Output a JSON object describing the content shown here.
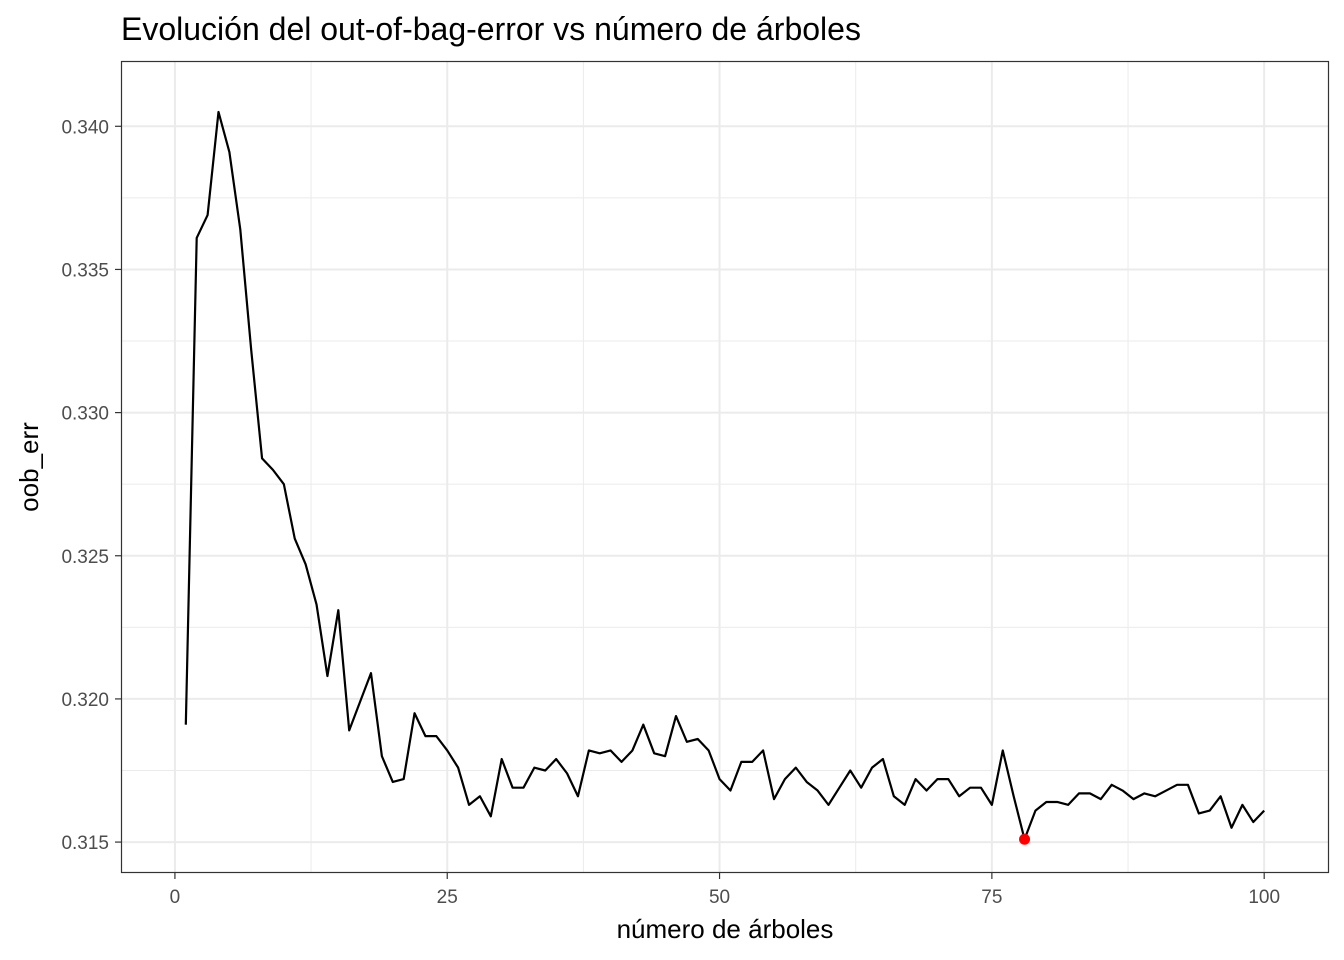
{
  "chart_data": {
    "type": "line",
    "title": "Evolución del out-of-bag-error vs número de árboles",
    "xlabel": "número de árboles",
    "ylabel": "oob_err",
    "xlim": [
      -4.95,
      105.95
    ],
    "ylim": [
      0.31392,
      0.34228
    ],
    "x_ticks": [
      0,
      25,
      50,
      75,
      100
    ],
    "x_tick_labels": [
      "0",
      "25",
      "50",
      "75",
      "100"
    ],
    "y_ticks": [
      0.315,
      0.32,
      0.325,
      0.33,
      0.335,
      0.34
    ],
    "y_tick_labels": [
      "0.315",
      "0.320",
      "0.325",
      "0.330",
      "0.335",
      "0.340"
    ],
    "grid": true,
    "series": [
      {
        "color": "#000000",
        "x": [
          1,
          2,
          3,
          4,
          5,
          6,
          7,
          8,
          9,
          10,
          11,
          12,
          13,
          14,
          15,
          16,
          17,
          18,
          19,
          20,
          21,
          22,
          23,
          24,
          25,
          26,
          27,
          28,
          29,
          30,
          31,
          32,
          33,
          34,
          35,
          36,
          37,
          38,
          39,
          40,
          41,
          42,
          43,
          44,
          45,
          46,
          47,
          48,
          49,
          50,
          51,
          52,
          53,
          54,
          55,
          56,
          57,
          58,
          59,
          60,
          61,
          62,
          63,
          64,
          65,
          66,
          67,
          68,
          69,
          70,
          71,
          72,
          73,
          74,
          75,
          76,
          77,
          78,
          79,
          80,
          81,
          82,
          83,
          84,
          85,
          86,
          87,
          88,
          89,
          90,
          91,
          92,
          93,
          94,
          95,
          96,
          97,
          98,
          99,
          100
        ],
        "y": [
          0.3191,
          0.3361,
          0.3369,
          0.3405,
          0.3391,
          0.3364,
          0.3322,
          0.3284,
          0.328,
          0.3275,
          0.3256,
          0.3247,
          0.3233,
          0.3208,
          0.3231,
          0.3189,
          0.3199,
          0.3209,
          0.318,
          0.3171,
          0.3172,
          0.3195,
          0.3187,
          0.3187,
          0.3182,
          0.3176,
          0.3163,
          0.3166,
          0.3159,
          0.3179,
          0.3169,
          0.3169,
          0.3176,
          0.3175,
          0.3179,
          0.3174,
          0.3166,
          0.3182,
          0.3181,
          0.3182,
          0.3178,
          0.3182,
          0.3191,
          0.3181,
          0.318,
          0.3194,
          0.3185,
          0.3186,
          0.3182,
          0.3172,
          0.3168,
          0.3178,
          0.3178,
          0.3182,
          0.3165,
          0.3172,
          0.3176,
          0.3171,
          0.3168,
          0.3163,
          0.3169,
          0.3175,
          0.3169,
          0.3176,
          0.3179,
          0.3166,
          0.3163,
          0.3172,
          0.3168,
          0.3172,
          0.3172,
          0.3166,
          0.3169,
          0.3169,
          0.3163,
          0.3182,
          0.3166,
          0.3151,
          0.3161,
          0.3164,
          0.3164,
          0.3163,
          0.3167,
          0.3167,
          0.3165,
          0.317,
          0.3168,
          0.3165,
          0.3167,
          0.3166,
          0.3168,
          0.317,
          0.317,
          0.316,
          0.3161,
          0.3166,
          0.3155,
          0.3163,
          0.3157,
          0.3161
        ]
      }
    ],
    "highlight_point": {
      "x": 78,
      "y": 0.3151,
      "color": "#ff0000"
    }
  }
}
